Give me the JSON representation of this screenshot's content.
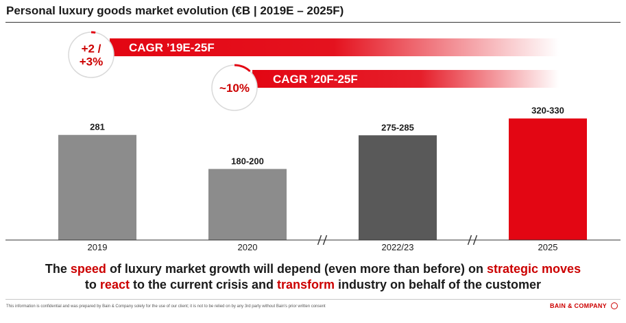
{
  "title": "Personal luxury goods market evolution (€B | 2019E – 2025F)",
  "chart_data": {
    "type": "bar",
    "categories": [
      "2019",
      "2020",
      "2022/23",
      "2025"
    ],
    "value_labels": [
      "281",
      "180-200",
      "275-285",
      "320-330"
    ],
    "values": [
      281,
      190,
      280,
      325
    ],
    "ranges": [
      null,
      [
        180,
        200
      ],
      [
        275,
        285
      ],
      [
        320,
        330
      ]
    ],
    "bar_colors": [
      "#8c8c8c",
      "#8c8c8c",
      "#595959",
      "#e30613"
    ],
    "ylim": [
      0,
      330
    ],
    "axis_breaks_after": [
      "2020",
      "2022/23"
    ],
    "annotations": [
      {
        "circle_text": [
          "+2 /",
          "+3%"
        ],
        "arrow_text": "CAGR ’19E-25F",
        "from": "2019",
        "to": "2025"
      },
      {
        "circle_text": [
          "~10%"
        ],
        "arrow_text": "CAGR ’20F-25F",
        "from": "2020",
        "to": "2025"
      }
    ]
  },
  "headline": {
    "line1": [
      "The ",
      "speed",
      " of luxury market growth will depend (even more than before) on ",
      "strategic moves"
    ],
    "line2": [
      "to ",
      "react",
      " to the current crisis and ",
      "transform",
      " industry on behalf of the customer"
    ]
  },
  "footer": {
    "disclaimer": "This information is confidential and was prepared by Bain & Company solely for the use of our client; it is not to be relied on by any 3rd party without Bain's prior written consent",
    "brand": "BAIN & COMPANY"
  },
  "colors": {
    "accent": "#e30613",
    "bar_grey": "#8c8c8c",
    "bar_dark": "#595959"
  }
}
